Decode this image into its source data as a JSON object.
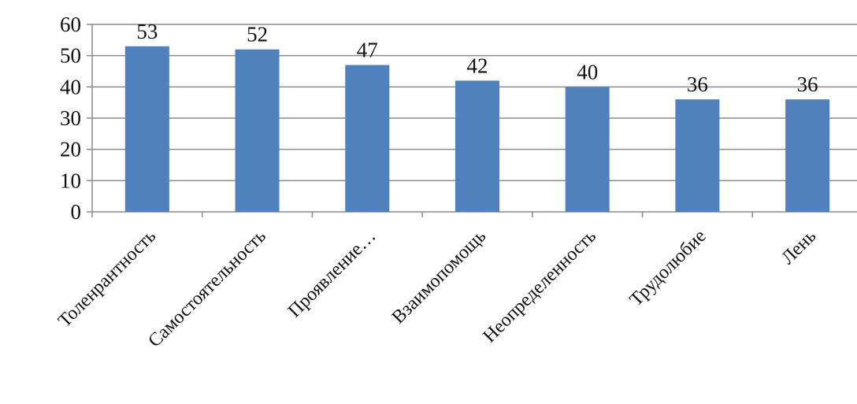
{
  "chart_data": {
    "type": "bar",
    "categories": [
      "Толенрантность",
      "Самостоятельность",
      "Проявление…",
      "Взаимопомощь",
      "Неопределенность",
      "Трудолюбие",
      "Лень"
    ],
    "values": [
      53,
      52,
      47,
      42,
      40,
      36,
      36
    ],
    "title": "",
    "xlabel": "",
    "ylabel": "",
    "ylim": [
      0,
      60
    ],
    "yticks": [
      0,
      10,
      20,
      30,
      40,
      50,
      60
    ],
    "grid": true,
    "legend": "none",
    "bar_color": "#4F81BD",
    "data_labels": true
  }
}
